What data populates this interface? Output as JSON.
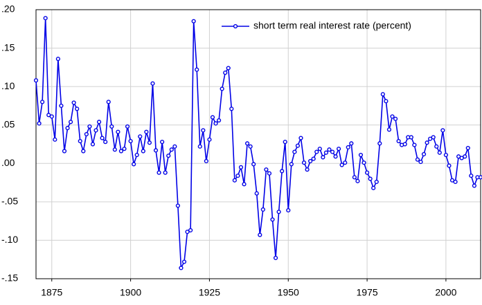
{
  "chart_data": {
    "type": "line",
    "x": [
      1870,
      1871,
      1872,
      1873,
      1874,
      1875,
      1876,
      1877,
      1878,
      1879,
      1880,
      1881,
      1882,
      1883,
      1884,
      1885,
      1886,
      1887,
      1888,
      1889,
      1890,
      1891,
      1892,
      1893,
      1894,
      1895,
      1896,
      1897,
      1898,
      1899,
      1900,
      1901,
      1902,
      1903,
      1904,
      1905,
      1906,
      1907,
      1908,
      1909,
      1910,
      1911,
      1912,
      1913,
      1914,
      1915,
      1916,
      1917,
      1918,
      1919,
      1920,
      1921,
      1922,
      1923,
      1924,
      1925,
      1926,
      1927,
      1928,
      1929,
      1930,
      1931,
      1932,
      1933,
      1934,
      1935,
      1936,
      1937,
      1938,
      1939,
      1940,
      1941,
      1942,
      1943,
      1944,
      1945,
      1946,
      1947,
      1948,
      1949,
      1950,
      1951,
      1952,
      1953,
      1954,
      1955,
      1956,
      1957,
      1958,
      1959,
      1960,
      1961,
      1962,
      1963,
      1964,
      1965,
      1966,
      1967,
      1968,
      1969,
      1970,
      1971,
      1972,
      1973,
      1974,
      1975,
      1976,
      1977,
      1978,
      1979,
      1980,
      1981,
      1982,
      1983,
      1984,
      1985,
      1986,
      1987,
      1988,
      1989,
      1990,
      1991,
      1992,
      1993,
      1994,
      1995,
      1996,
      1997,
      1998,
      1999,
      2000,
      2001,
      2002,
      2003,
      2004,
      2005,
      2006,
      2007,
      2008,
      2009,
      2010,
      2011
    ],
    "series": [
      {
        "name": "short term real interest rate (percent)",
        "color": "#0000e6",
        "values": [
          0.108,
          0.052,
          0.08,
          0.189,
          0.063,
          0.061,
          0.031,
          0.136,
          0.075,
          0.016,
          0.046,
          0.054,
          0.079,
          0.071,
          0.029,
          0.016,
          0.038,
          0.048,
          0.025,
          0.043,
          0.054,
          0.033,
          0.028,
          0.08,
          0.048,
          0.018,
          0.041,
          0.016,
          0.019,
          0.048,
          0.029,
          -0.001,
          0.011,
          0.035,
          0.016,
          0.041,
          0.027,
          0.104,
          0.017,
          -0.012,
          0.028,
          -0.012,
          0.01,
          0.018,
          0.022,
          -0.055,
          -0.136,
          -0.128,
          -0.089,
          -0.087,
          0.185,
          0.122,
          0.022,
          0.043,
          0.003,
          0.031,
          0.06,
          0.052,
          0.056,
          0.097,
          0.118,
          0.124,
          0.071,
          -0.022,
          -0.016,
          -0.005,
          -0.027,
          0.026,
          0.022,
          -0.001,
          -0.039,
          -0.093,
          -0.06,
          -0.008,
          -0.013,
          -0.073,
          -0.123,
          -0.063,
          -0.01,
          0.028,
          -0.061,
          -0.001,
          0.015,
          0.023,
          0.033,
          0.001,
          -0.008,
          0.003,
          0.006,
          0.015,
          0.019,
          0.008,
          0.014,
          0.018,
          0.015,
          0.009,
          0.019,
          -0.002,
          0.001,
          0.021,
          0.026,
          -0.018,
          -0.023,
          0.011,
          0.001,
          -0.012,
          -0.02,
          -0.032,
          -0.024,
          0.026,
          0.09,
          0.081,
          0.044,
          0.061,
          0.058,
          0.029,
          0.024,
          0.025,
          0.034,
          0.034,
          0.024,
          0.005,
          0.002,
          0.012,
          0.027,
          0.032,
          0.034,
          0.022,
          0.014,
          0.043,
          0.011,
          -0.003,
          -0.022,
          -0.024,
          0.009,
          0.007,
          0.009,
          0.02,
          -0.016,
          -0.029,
          -0.018,
          -0.018
        ]
      }
    ],
    "xlim": [
      1870,
      2011
    ],
    "xticks": [
      1875,
      1900,
      1925,
      1950,
      1975,
      2000
    ],
    "ylim": [
      -0.15,
      0.2
    ],
    "yticks": [
      {
        "value": -0.15,
        "label": "-.15"
      },
      {
        "value": -0.1,
        "label": "-.10"
      },
      {
        "value": -0.05,
        "label": "-.05"
      },
      {
        "value": 0,
        "label": ".00"
      },
      {
        "value": 0.05,
        "label": ".05"
      },
      {
        "value": 0.1,
        "label": ".10"
      },
      {
        "value": 0.15,
        "label": ".15"
      },
      {
        "value": 0.2,
        "label": ".20"
      }
    ],
    "grid": true,
    "legend": "top-right"
  }
}
